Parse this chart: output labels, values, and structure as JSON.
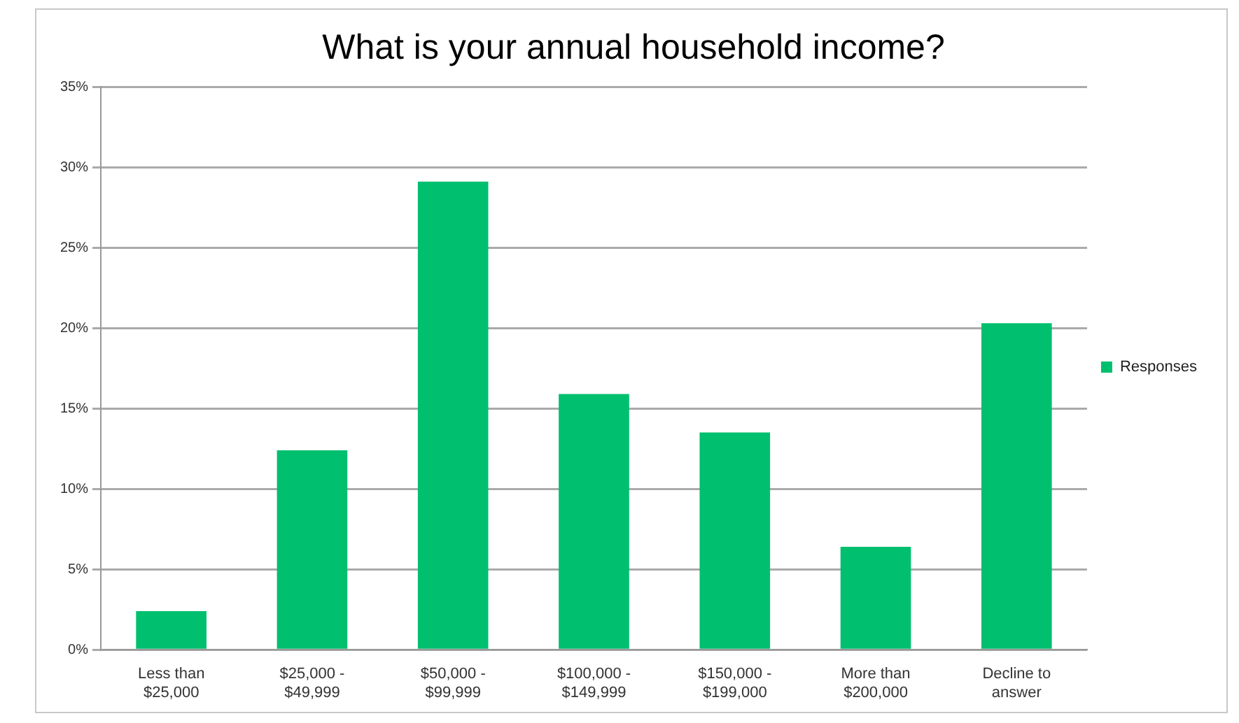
{
  "chart_data": {
    "type": "bar",
    "title": "What is your annual household income?",
    "categories": [
      "Less than $25,000",
      "$25,000 - $49,999",
      "$50,000 - $99,999",
      "$100,000 - $149,999",
      "$150,000 - $199,000",
      "More than $200,000",
      "Decline to answer"
    ],
    "series": [
      {
        "name": "Responses",
        "color": "#00bf6f",
        "values": [
          2.4,
          12.4,
          29.1,
          15.9,
          13.5,
          6.4,
          20.3
        ]
      }
    ],
    "ylim": [
      0,
      35
    ],
    "yticks": [
      {
        "value": 0,
        "label": "0%"
      },
      {
        "value": 5,
        "label": "5%"
      },
      {
        "value": 10,
        "label": "10%"
      },
      {
        "value": 15,
        "label": "15%"
      },
      {
        "value": 20,
        "label": "20%"
      },
      {
        "value": 25,
        "label": "25%"
      },
      {
        "value": 30,
        "label": "30%"
      },
      {
        "value": 35,
        "label": "35%"
      }
    ],
    "grid": "y",
    "legend": "right"
  }
}
